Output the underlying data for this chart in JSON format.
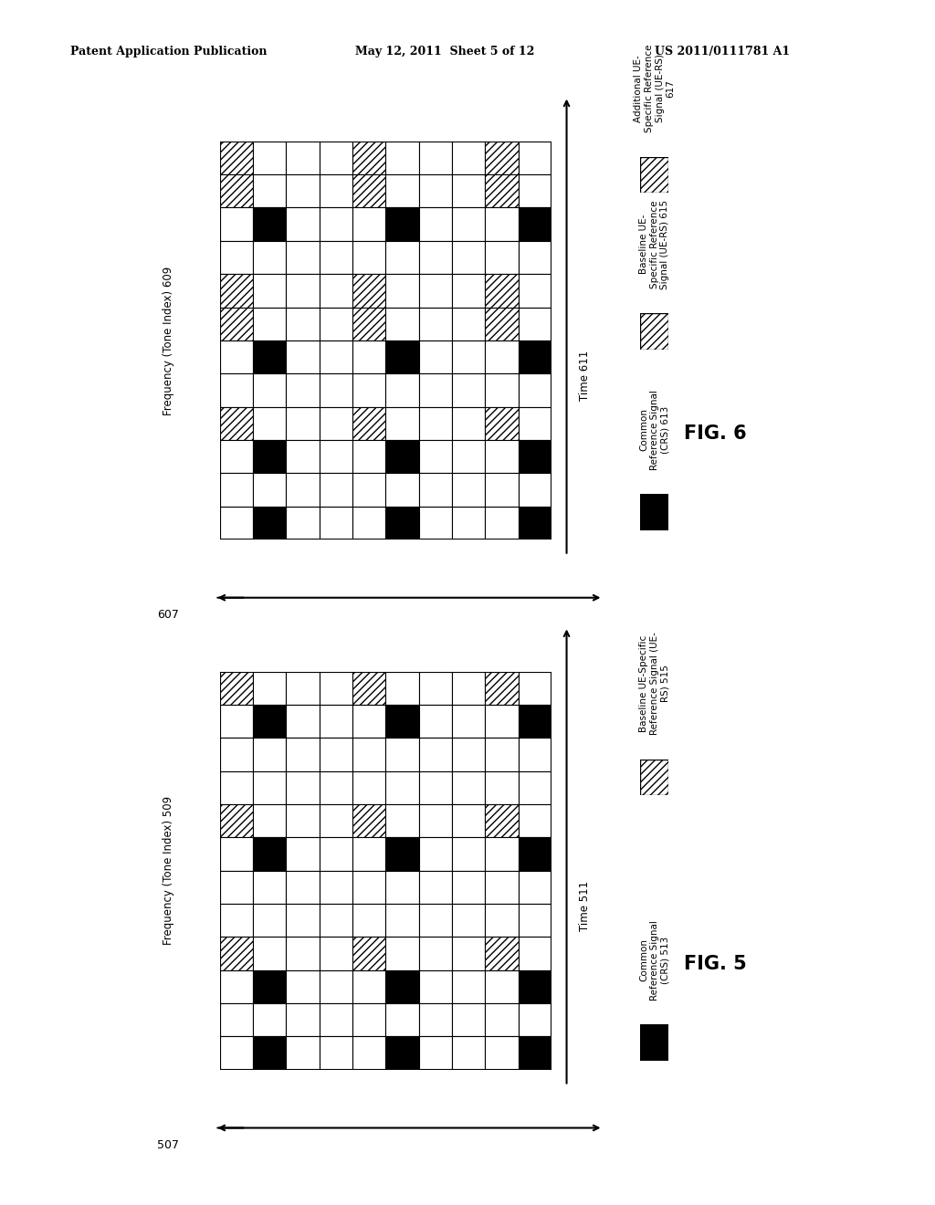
{
  "header_left": "Patent Application Publication",
  "header_center": "May 12, 2011  Sheet 5 of 12",
  "header_right": "US 2011/0111781 A1",
  "fig5_label": "FIG. 5",
  "fig6_label": "FIG. 6",
  "fig5_ref_num": "507",
  "fig6_ref_num": "607",
  "fig5_freq_label": "Frequency (Tone Index) 509",
  "fig6_freq_label": "Frequency (Tone Index) 609",
  "fig5_time_label": "Time 511",
  "fig6_time_label": "Time 611",
  "fig5_crs_label": "Common\nReference Signal\n(CRS) 513",
  "fig6_crs_label": "Common\nReference Signal\n(CRS) 613",
  "fig5_ue_rs_label": "Baseline UE-Specific\nReference Signal (UE-\nRS) 515",
  "fig6_ue_rs_baseline_label": "Baseline UE-\nSpecific Reference\nSignal (UE-RS) 615",
  "fig6_ue_rs_additional_label": "Additional UE-\nSpecific Reference\nSignal (UE-RS)\n617",
  "grid_cols": 10,
  "grid_rows": 12,
  "fig6_grid": [
    [
      "H",
      "W",
      "W",
      "W",
      "H",
      "W",
      "W",
      "W",
      "H",
      "W"
    ],
    [
      "H",
      "W",
      "W",
      "W",
      "H",
      "W",
      "W",
      "W",
      "H",
      "W"
    ],
    [
      "W",
      "B",
      "W",
      "W",
      "W",
      "B",
      "W",
      "W",
      "W",
      "B"
    ],
    [
      "W",
      "W",
      "W",
      "W",
      "W",
      "W",
      "W",
      "W",
      "W",
      "W"
    ],
    [
      "H",
      "W",
      "W",
      "W",
      "H",
      "W",
      "W",
      "W",
      "H",
      "W"
    ],
    [
      "H",
      "W",
      "W",
      "W",
      "H",
      "W",
      "W",
      "W",
      "H",
      "W"
    ],
    [
      "W",
      "B",
      "W",
      "W",
      "W",
      "B",
      "W",
      "W",
      "W",
      "B"
    ],
    [
      "W",
      "W",
      "W",
      "W",
      "W",
      "W",
      "W",
      "W",
      "W",
      "W"
    ],
    [
      "H",
      "W",
      "W",
      "W",
      "H",
      "W",
      "W",
      "W",
      "H",
      "W"
    ],
    [
      "W",
      "B",
      "W",
      "W",
      "W",
      "B",
      "W",
      "W",
      "W",
      "B"
    ],
    [
      "W",
      "W",
      "W",
      "W",
      "W",
      "W",
      "W",
      "W",
      "W",
      "W"
    ],
    [
      "W",
      "B",
      "W",
      "W",
      "W",
      "B",
      "W",
      "W",
      "W",
      "B"
    ]
  ],
  "fig5_grid": [
    [
      "H",
      "W",
      "W",
      "W",
      "H",
      "W",
      "W",
      "W",
      "H",
      "W"
    ],
    [
      "W",
      "B",
      "W",
      "W",
      "W",
      "B",
      "W",
      "W",
      "W",
      "B"
    ],
    [
      "W",
      "W",
      "W",
      "W",
      "W",
      "W",
      "W",
      "W",
      "W",
      "W"
    ],
    [
      "W",
      "W",
      "W",
      "W",
      "W",
      "W",
      "W",
      "W",
      "W",
      "W"
    ],
    [
      "H",
      "W",
      "W",
      "W",
      "H",
      "W",
      "W",
      "W",
      "H",
      "W"
    ],
    [
      "W",
      "B",
      "W",
      "W",
      "W",
      "B",
      "W",
      "W",
      "W",
      "B"
    ],
    [
      "W",
      "W",
      "W",
      "W",
      "W",
      "W",
      "W",
      "W",
      "W",
      "W"
    ],
    [
      "W",
      "W",
      "W",
      "W",
      "W",
      "W",
      "W",
      "W",
      "W",
      "W"
    ],
    [
      "H",
      "W",
      "W",
      "W",
      "H",
      "W",
      "W",
      "W",
      "H",
      "W"
    ],
    [
      "W",
      "B",
      "W",
      "W",
      "W",
      "B",
      "W",
      "W",
      "W",
      "B"
    ],
    [
      "W",
      "W",
      "W",
      "W",
      "W",
      "W",
      "W",
      "W",
      "W",
      "W"
    ],
    [
      "W",
      "B",
      "W",
      "W",
      "W",
      "B",
      "W",
      "W",
      "W",
      "B"
    ]
  ],
  "bg_color": "#ffffff"
}
